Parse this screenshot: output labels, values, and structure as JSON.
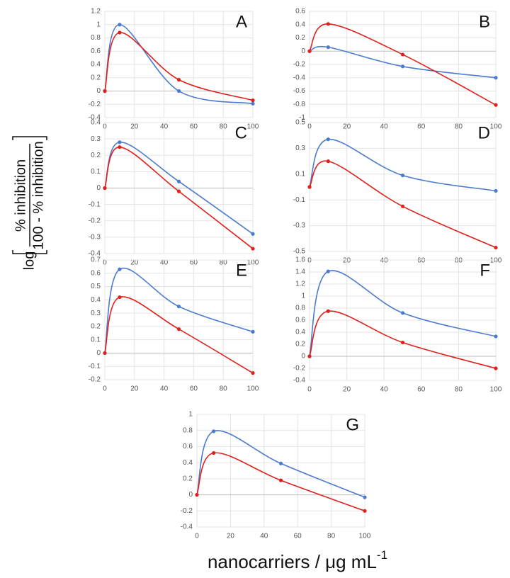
{
  "chart_data": [
    {
      "type": "line",
      "title": "A",
      "x": [
        0,
        10,
        50,
        100
      ],
      "xlim": [
        0,
        100
      ],
      "xticks": [
        0,
        20,
        40,
        60,
        80,
        100
      ],
      "ylim": [
        -0.4,
        1.2
      ],
      "yticks": [
        -0.4,
        -0.2,
        0,
        0.2,
        0.4,
        0.6,
        0.8,
        1,
        1.2
      ],
      "grid": true,
      "series": [
        {
          "color": "#4a7bd0",
          "values": [
            0,
            1.0,
            0.0,
            -0.19
          ]
        },
        {
          "color": "#e0201b",
          "values": [
            0,
            0.88,
            0.17,
            -0.14
          ]
        }
      ]
    },
    {
      "type": "line",
      "title": "B",
      "x": [
        0,
        10,
        50,
        100
      ],
      "xlim": [
        0,
        100
      ],
      "xticks": [
        0,
        20,
        40,
        60,
        80,
        100
      ],
      "ylim": [
        -1,
        0.6
      ],
      "yticks": [
        -1,
        -0.8,
        -0.6,
        -0.4,
        -0.2,
        0,
        0.2,
        0.4,
        0.6
      ],
      "grid": true,
      "series": [
        {
          "color": "#4a7bd0",
          "values": [
            0,
            0.06,
            -0.23,
            -0.4
          ]
        },
        {
          "color": "#e0201b",
          "values": [
            0,
            0.41,
            -0.05,
            -0.81
          ]
        }
      ]
    },
    {
      "type": "line",
      "title": "C",
      "x": [
        0,
        10,
        50,
        100
      ],
      "xlim": [
        0,
        100
      ],
      "xticks": [
        0,
        20,
        40,
        60,
        80,
        100
      ],
      "ylim": [
        -0.4,
        0.4
      ],
      "yticks": [
        -0.4,
        -0.3,
        -0.2,
        -0.1,
        0,
        0.1,
        0.2,
        0.3,
        0.4
      ],
      "grid": true,
      "series": [
        {
          "color": "#4a7bd0",
          "values": [
            0,
            0.28,
            0.04,
            -0.28
          ]
        },
        {
          "color": "#e0201b",
          "values": [
            0,
            0.25,
            -0.02,
            -0.37
          ]
        }
      ]
    },
    {
      "type": "line",
      "title": "D",
      "x": [
        0,
        10,
        50,
        100
      ],
      "xlim": [
        0,
        100
      ],
      "xticks": [
        0,
        20,
        40,
        60,
        80,
        100
      ],
      "ylim": [
        -0.5,
        0.5
      ],
      "yticks": [
        -0.5,
        -0.3,
        -0.1,
        0.1,
        0.3,
        0.5
      ],
      "grid": true,
      "series": [
        {
          "color": "#4a7bd0",
          "values": [
            0,
            0.37,
            0.09,
            -0.03
          ]
        },
        {
          "color": "#e0201b",
          "values": [
            0,
            0.2,
            -0.15,
            -0.47
          ]
        }
      ]
    },
    {
      "type": "line",
      "title": "E",
      "x": [
        0,
        10,
        50,
        100
      ],
      "xlim": [
        0,
        100
      ],
      "xticks": [
        0,
        20,
        40,
        60,
        80,
        100
      ],
      "ylim": [
        -0.2,
        0.7
      ],
      "yticks": [
        -0.2,
        -0.1,
        0,
        0.1,
        0.2,
        0.3,
        0.4,
        0.5,
        0.6,
        0.7
      ],
      "grid": true,
      "series": [
        {
          "color": "#4a7bd0",
          "values": [
            0,
            0.63,
            0.35,
            0.16
          ]
        },
        {
          "color": "#e0201b",
          "values": [
            0,
            0.42,
            0.18,
            -0.15
          ]
        }
      ]
    },
    {
      "type": "line",
      "title": "F",
      "x": [
        0,
        10,
        50,
        100
      ],
      "xlim": [
        0,
        100
      ],
      "xticks": [
        0,
        20,
        40,
        60,
        80,
        100
      ],
      "ylim": [
        -0.4,
        1.6
      ],
      "yticks": [
        -0.4,
        -0.2,
        0,
        0.2,
        0.4,
        0.6,
        0.8,
        1,
        1.2,
        1.4,
        1.6
      ],
      "grid": true,
      "series": [
        {
          "color": "#4a7bd0",
          "values": [
            0,
            1.41,
            0.72,
            0.33
          ]
        },
        {
          "color": "#e0201b",
          "values": [
            0,
            0.75,
            0.23,
            -0.2
          ]
        }
      ]
    },
    {
      "type": "line",
      "title": "G",
      "x": [
        0,
        10,
        50,
        100
      ],
      "xlim": [
        0,
        100
      ],
      "xticks": [
        0,
        20,
        40,
        60,
        80,
        100
      ],
      "ylim": [
        -0.4,
        1
      ],
      "yticks": [
        -0.4,
        -0.2,
        0,
        0.2,
        0.4,
        0.6,
        0.8,
        1
      ],
      "grid": true,
      "series": [
        {
          "color": "#4a7bd0",
          "values": [
            0,
            0.79,
            0.39,
            -0.03
          ]
        },
        {
          "color": "#e0201b",
          "values": [
            0,
            0.52,
            0.18,
            -0.2
          ]
        }
      ]
    }
  ],
  "ylabel": {
    "prefix": "log",
    "numerator": "% inhibition",
    "denominator": "100 - % inhibition"
  },
  "xlabel": {
    "text": "nanocarriers / μg mL",
    "superscript": "-1"
  }
}
